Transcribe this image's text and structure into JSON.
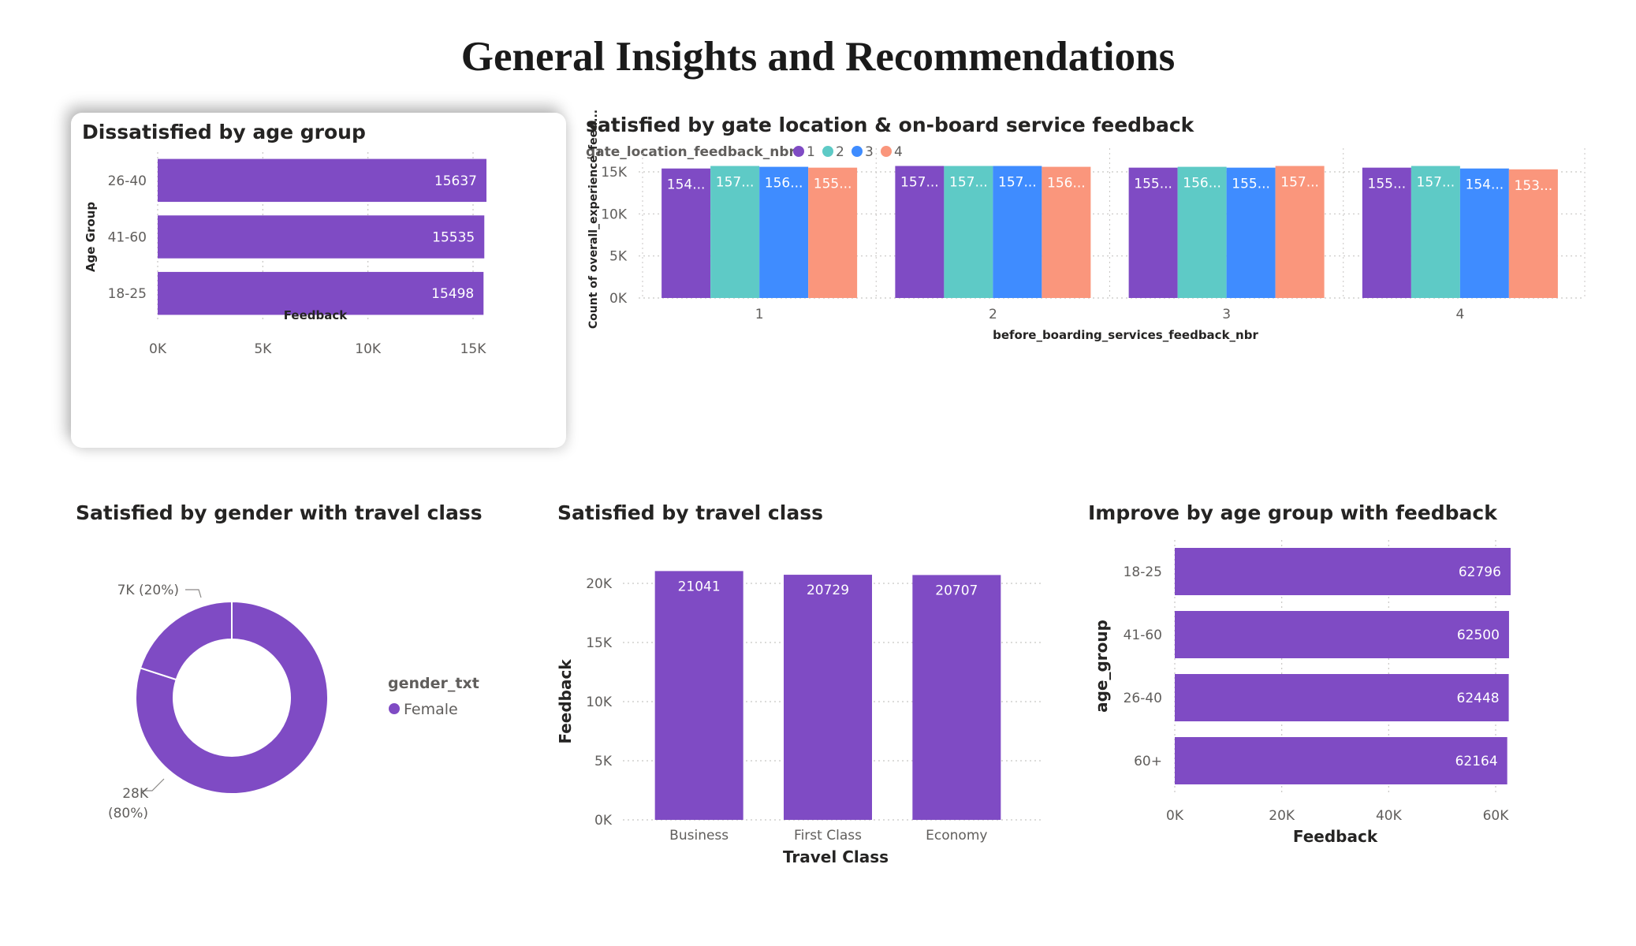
{
  "page": {
    "title": "General Insights and Recommendations"
  },
  "colors": {
    "purple": "#7F4BC4",
    "teal": "#5ECAC6",
    "blue": "#3F8CFF",
    "salmon": "#FA967C",
    "gridline": "#C8C6C4",
    "axis_text": "#605E5C"
  },
  "chart_data": [
    {
      "id": "dissatisfied-age",
      "type": "bar",
      "orientation": "horizontal",
      "title": "Dissatisfied by age group",
      "xlabel": "Feedback",
      "ylabel": "Age Group",
      "categories": [
        "26-40",
        "41-60",
        "18-25"
      ],
      "values": [
        15637,
        15535,
        15498
      ],
      "data_labels": [
        "15637",
        "15535",
        "15498"
      ],
      "xlim": [
        0,
        15000
      ],
      "xticks": [
        0,
        5000,
        10000,
        15000
      ],
      "xtick_labels": [
        "0K",
        "5K",
        "10K",
        "15K"
      ],
      "grid": true
    },
    {
      "id": "satisfied-gate",
      "type": "bar",
      "orientation": "vertical",
      "grouped": true,
      "title": "satisfied by gate location & on-board service feedback",
      "legend_title": "gate_location_feedback_nbr",
      "legend_position": "top-left",
      "xlabel": "before_boarding_services_feedback_nbr",
      "ylabel": "Count of overall_experience_feed...",
      "categories": [
        "1",
        "2",
        "3",
        "4"
      ],
      "series": [
        {
          "name": "1",
          "color": "#7F4BC4",
          "values": [
            15400,
            15700,
            15500,
            15500
          ],
          "labels": [
            "154...",
            "157...",
            "155...",
            "155..."
          ]
        },
        {
          "name": "2",
          "color": "#5ECAC6",
          "values": [
            15700,
            15700,
            15600,
            15700
          ],
          "labels": [
            "157...",
            "157...",
            "156...",
            "157..."
          ]
        },
        {
          "name": "3",
          "color": "#3F8CFF",
          "values": [
            15600,
            15700,
            15500,
            15400
          ],
          "labels": [
            "156...",
            "157...",
            "155...",
            "154..."
          ]
        },
        {
          "name": "4",
          "color": "#FA967C",
          "values": [
            15500,
            15600,
            15700,
            15300
          ],
          "labels": [
            "155...",
            "156...",
            "157...",
            "153..."
          ]
        }
      ],
      "ylim": [
        0,
        15000
      ],
      "yticks": [
        0,
        5000,
        10000,
        15000
      ],
      "ytick_labels": [
        "0K",
        "5K",
        "10K",
        "15K"
      ],
      "grid": true
    },
    {
      "id": "satisfied-gender",
      "type": "pie",
      "donut": true,
      "title": "Satisfied by gender with travel class",
      "legend_title": "gender_txt",
      "legend_position": "right",
      "slices": [
        {
          "name": "Female",
          "value": 28000,
          "label": "28K",
          "pct_label": "(80%)",
          "color": "#7F4BC4"
        },
        {
          "name": "",
          "value": 7000,
          "label": "7K (20%)",
          "pct_label": "",
          "color": "#7F4BC4"
        }
      ],
      "legend_entries": [
        "Female"
      ]
    },
    {
      "id": "satisfied-travel-class",
      "type": "bar",
      "orientation": "vertical",
      "title": "Satisfied by travel class",
      "xlabel": "Travel Class",
      "ylabel": "Feedback",
      "categories": [
        "Business",
        "First Class",
        "Economy"
      ],
      "values": [
        21041,
        20729,
        20707
      ],
      "data_labels": [
        "21041",
        "20729",
        "20707"
      ],
      "ylim": [
        0,
        20000
      ],
      "yticks": [
        0,
        5000,
        10000,
        15000,
        20000
      ],
      "ytick_labels": [
        "0K",
        "5K",
        "10K",
        "15K",
        "20K"
      ],
      "grid": true
    },
    {
      "id": "improve-age",
      "type": "bar",
      "orientation": "horizontal",
      "title": "Improve by age group with feedback",
      "xlabel": "Feedback",
      "ylabel": "age_group",
      "categories": [
        "18-25",
        "41-60",
        "26-40",
        "60+"
      ],
      "values": [
        62796,
        62500,
        62448,
        62164
      ],
      "data_labels": [
        "62796",
        "62500",
        "62448",
        "62164"
      ],
      "xlim": [
        0,
        60000
      ],
      "xticks": [
        0,
        20000,
        40000,
        60000
      ],
      "xtick_labels": [
        "0K",
        "20K",
        "40K",
        "60K"
      ],
      "grid": true
    }
  ]
}
